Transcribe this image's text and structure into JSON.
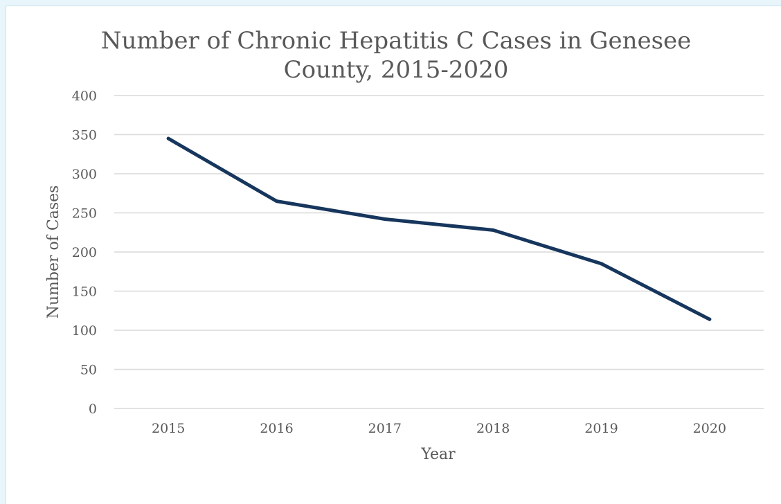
{
  "chart_data": {
    "type": "line",
    "title_lines": [
      "Number of Chronic Hepatitis C Cases in Genesee",
      "County, 2015-2020"
    ],
    "xlabel": "Year",
    "ylabel": "Number of Cases",
    "categories": [
      "2015",
      "2016",
      "2017",
      "2018",
      "2019",
      "2020"
    ],
    "series": [
      {
        "values": [
          345,
          265,
          242,
          228,
          185,
          114
        ],
        "color": "#17365d"
      }
    ],
    "ylim": [
      0,
      400
    ],
    "yticks": [
      0,
      50,
      100,
      150,
      200,
      250,
      300,
      350,
      400
    ],
    "ytick_labels": [
      "0",
      "50",
      "100",
      "150",
      "200",
      "250",
      "300",
      "350",
      "400"
    ],
    "grid": "horizontal",
    "legend": "none"
  }
}
